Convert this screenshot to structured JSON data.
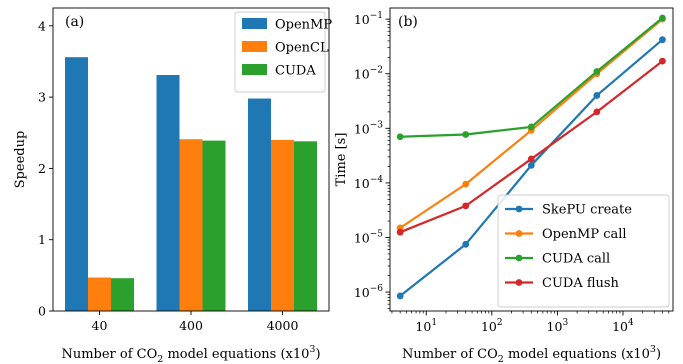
{
  "chart_data": [
    {
      "type": "bar",
      "panel_label": "(a)",
      "categories": [
        "40",
        "400",
        "4000"
      ],
      "series": [
        {
          "name": "OpenMP",
          "color": "#1f77b4",
          "values": [
            3.56,
            3.31,
            2.98
          ]
        },
        {
          "name": "OpenCL",
          "color": "#ff7f0e",
          "values": [
            0.47,
            2.41,
            2.4
          ]
        },
        {
          "name": "CUDA",
          "color": "#2ca02c",
          "values": [
            0.46,
            2.39,
            2.38
          ]
        }
      ],
      "xlabel": {
        "pre": "Number of CO",
        "sub": "2",
        "post": " model equations (x10",
        "sup": "3",
        "end": ")"
      },
      "ylabel": "Speedup",
      "ylim": [
        0,
        4.25
      ],
      "yticks": [
        "0",
        "1",
        "2",
        "3",
        "4"
      ],
      "legend_position": "top-right",
      "grid": false
    },
    {
      "type": "line",
      "scale": "log-log",
      "panel_label": "(b)",
      "x": [
        4,
        40,
        400,
        4000,
        40000
      ],
      "series": [
        {
          "name": "SkePU create",
          "color": "#1f77b4",
          "values": [
            8.5e-07,
            7.5e-06,
            0.00021,
            0.004,
            0.042
          ]
        },
        {
          "name": "OpenMP call",
          "color": "#ff7f0e",
          "values": [
            1.5e-05,
            9.5e-05,
            0.00092,
            0.01,
            0.1
          ]
        },
        {
          "name": "CUDA call",
          "color": "#2ca02c",
          "values": [
            0.0007,
            0.00077,
            0.00106,
            0.011,
            0.105
          ]
        },
        {
          "name": "CUDA flush",
          "color": "#d62728",
          "values": [
            1.25e-05,
            3.8e-05,
            0.000275,
            0.002,
            0.017
          ]
        }
      ],
      "xlabel": {
        "pre": "Number of CO",
        "sub": "2",
        "post": " model equations (x10",
        "sup": "3",
        "end": ")"
      },
      "ylabel": "Time [s]",
      "xlim": [
        2.8,
        58000
      ],
      "ylim": [
        4.5e-07,
        0.16
      ],
      "xticks": [
        {
          "base": "10",
          "exp": "1",
          "value": 10
        },
        {
          "base": "10",
          "exp": "2",
          "value": 100
        },
        {
          "base": "10",
          "exp": "3",
          "value": 1000
        },
        {
          "base": "10",
          "exp": "4",
          "value": 10000
        }
      ],
      "yticks": [
        {
          "base": "10",
          "exp": "−6",
          "value": 1e-06
        },
        {
          "base": "10",
          "exp": "−5",
          "value": 1e-05
        },
        {
          "base": "10",
          "exp": "−4",
          "value": 0.0001
        },
        {
          "base": "10",
          "exp": "−3",
          "value": 0.001
        },
        {
          "base": "10",
          "exp": "−2",
          "value": 0.01
        },
        {
          "base": "10",
          "exp": "−1",
          "value": 0.1
        }
      ],
      "legend_position": "bottom-right",
      "grid": false
    }
  ]
}
